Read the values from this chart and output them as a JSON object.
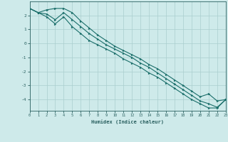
{
  "xlabel": "Humidex (Indice chaleur)",
  "ylabel": "",
  "background_color": "#ceeaea",
  "grid_color": "#aacece",
  "line_color": "#1a6e6a",
  "marker_color": "#1a6e6a",
  "x_values": [
    0,
    1,
    2,
    3,
    4,
    5,
    6,
    7,
    8,
    9,
    10,
    11,
    12,
    13,
    14,
    15,
    16,
    17,
    18,
    19,
    20,
    21,
    22,
    23
  ],
  "y_mean": [
    2.5,
    2.2,
    2.1,
    1.7,
    2.2,
    1.7,
    1.2,
    0.7,
    0.3,
    -0.1,
    -0.4,
    -0.7,
    -1.0,
    -1.4,
    -1.7,
    -2.1,
    -2.5,
    -2.9,
    -3.3,
    -3.7,
    -4.1,
    -4.3,
    -4.55,
    -4.0
  ],
  "y_upper": [
    2.5,
    2.2,
    2.4,
    2.5,
    2.5,
    2.2,
    1.6,
    1.1,
    0.6,
    0.2,
    -0.2,
    -0.5,
    -0.8,
    -1.1,
    -1.5,
    -1.8,
    -2.2,
    -2.6,
    -3.0,
    -3.4,
    -3.8,
    -3.6,
    -4.1,
    -4.0
  ],
  "y_lower": [
    2.5,
    2.2,
    1.9,
    1.4,
    1.9,
    1.2,
    0.7,
    0.2,
    -0.1,
    -0.4,
    -0.7,
    -1.1,
    -1.4,
    -1.7,
    -2.1,
    -2.4,
    -2.8,
    -3.2,
    -3.6,
    -4.0,
    -4.3,
    -4.6,
    -4.6,
    -4.0
  ],
  "ylim": [
    -4.8,
    3.0
  ],
  "xlim": [
    0,
    23
  ],
  "yticks": [
    2,
    1,
    0,
    -1,
    -2,
    -3,
    -4
  ],
  "xticks": [
    0,
    1,
    2,
    3,
    4,
    5,
    6,
    7,
    8,
    9,
    10,
    11,
    12,
    13,
    14,
    15,
    16,
    17,
    18,
    19,
    20,
    21,
    22,
    23
  ],
  "tick_color": "#2a6060",
  "spine_color": "#2a6060"
}
